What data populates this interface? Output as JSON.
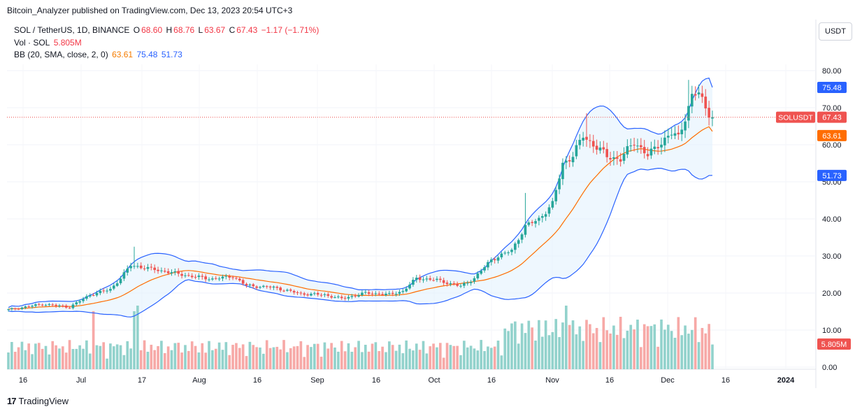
{
  "header": {
    "published": "Bitcoin_Analyzer published on TradingView.com, Dec 13, 2023 20:54 UTC+3"
  },
  "legend": {
    "symbol": "SOL / TetherUS, 1D, BINANCE",
    "o_label": "O",
    "o_value": "68.60",
    "h_label": "H",
    "h_value": "68.76",
    "l_label": "L",
    "l_value": "63.67",
    "c_label": "C",
    "c_value": "67.43",
    "change": "−1.17 (−1.71%)",
    "vol_label": "Vol · SOL",
    "vol_value": "5.805M",
    "bb_label": "BB (20, SMA, close, 2, 0)",
    "bb_basis": "63.61",
    "bb_upper": "75.48",
    "bb_lower": "51.73"
  },
  "currency_button": "USDT",
  "footer": {
    "brand": "TradingView",
    "logo_text": "17"
  },
  "colors": {
    "up": "#26a69a",
    "down": "#ef5350",
    "vol_up": "#92d2cc",
    "vol_down": "#f7a9a7",
    "band": "#2962ff",
    "basis": "#ff6d00",
    "band_fill": "#e3f2fd"
  },
  "chart_data": {
    "type": "candlestick",
    "title": "SOL / TetherUS, 1D, BINANCE",
    "y_axis": {
      "ticks": [
        "0.00",
        "10.00",
        "20.00",
        "30.00",
        "40.00",
        "50.00",
        "60.00",
        "70.00",
        "80.00"
      ],
      "range": [
        0,
        85
      ]
    },
    "x_axis": {
      "ticks": [
        "16",
        "Jul",
        "17",
        "Aug",
        "16",
        "Sep",
        "16",
        "Oct",
        "16",
        "Nov",
        "16",
        "Dec",
        "16",
        "2024"
      ]
    },
    "price_labels": {
      "symbol_tag": "SOLUSDT",
      "last": "67.43",
      "bb_upper": "75.48",
      "bb_basis": "63.61",
      "bb_lower": "51.73",
      "volume": "5.805M"
    },
    "anchors": [
      {
        "i": 0,
        "c": 15.5
      },
      {
        "i": 10,
        "c": 17.0
      },
      {
        "i": 18,
        "c": 16.2
      },
      {
        "i": 24,
        "c": 19.5
      },
      {
        "i": 30,
        "c": 21.0
      },
      {
        "i": 33,
        "c": 24.0
      },
      {
        "i": 36,
        "c": 27.5
      },
      {
        "i": 42,
        "c": 26.5
      },
      {
        "i": 48,
        "c": 25.5
      },
      {
        "i": 54,
        "c": 24.5
      },
      {
        "i": 60,
        "c": 23.8
      },
      {
        "i": 66,
        "c": 24.5
      },
      {
        "i": 70,
        "c": 22.0
      },
      {
        "i": 78,
        "c": 21.5
      },
      {
        "i": 86,
        "c": 19.8
      },
      {
        "i": 93,
        "c": 19.5
      },
      {
        "i": 98,
        "c": 18.5
      },
      {
        "i": 105,
        "c": 20.0
      },
      {
        "i": 112,
        "c": 19.6
      },
      {
        "i": 116,
        "c": 20.5
      },
      {
        "i": 120,
        "c": 24.0
      },
      {
        "i": 126,
        "c": 23.5
      },
      {
        "i": 133,
        "c": 21.8
      },
      {
        "i": 137,
        "c": 24.0
      },
      {
        "i": 142,
        "c": 29.0
      },
      {
        "i": 148,
        "c": 31.5
      },
      {
        "i": 152,
        "c": 38.0
      },
      {
        "i": 156,
        "c": 40.0
      },
      {
        "i": 160,
        "c": 44.0
      },
      {
        "i": 163,
        "c": 55.0
      },
      {
        "i": 166,
        "c": 57.0
      },
      {
        "i": 169,
        "c": 62.5
      },
      {
        "i": 172,
        "c": 60.0
      },
      {
        "i": 176,
        "c": 57.0
      },
      {
        "i": 180,
        "c": 56.0
      },
      {
        "i": 184,
        "c": 61.0
      },
      {
        "i": 188,
        "c": 57.0
      },
      {
        "i": 191,
        "c": 60.0
      },
      {
        "i": 195,
        "c": 63.0
      },
      {
        "i": 197,
        "c": 62.0
      },
      {
        "i": 201,
        "c": 73.0
      },
      {
        "i": 203,
        "c": 74.0
      },
      {
        "i": 205,
        "c": 70.0
      },
      {
        "i": 207,
        "c": 67.43
      }
    ],
    "candle_count": 208,
    "bb_upper_end": 75.48,
    "bb_basis_end": 63.61,
    "bb_lower_end": 51.73,
    "volume_last": 5.805
  }
}
